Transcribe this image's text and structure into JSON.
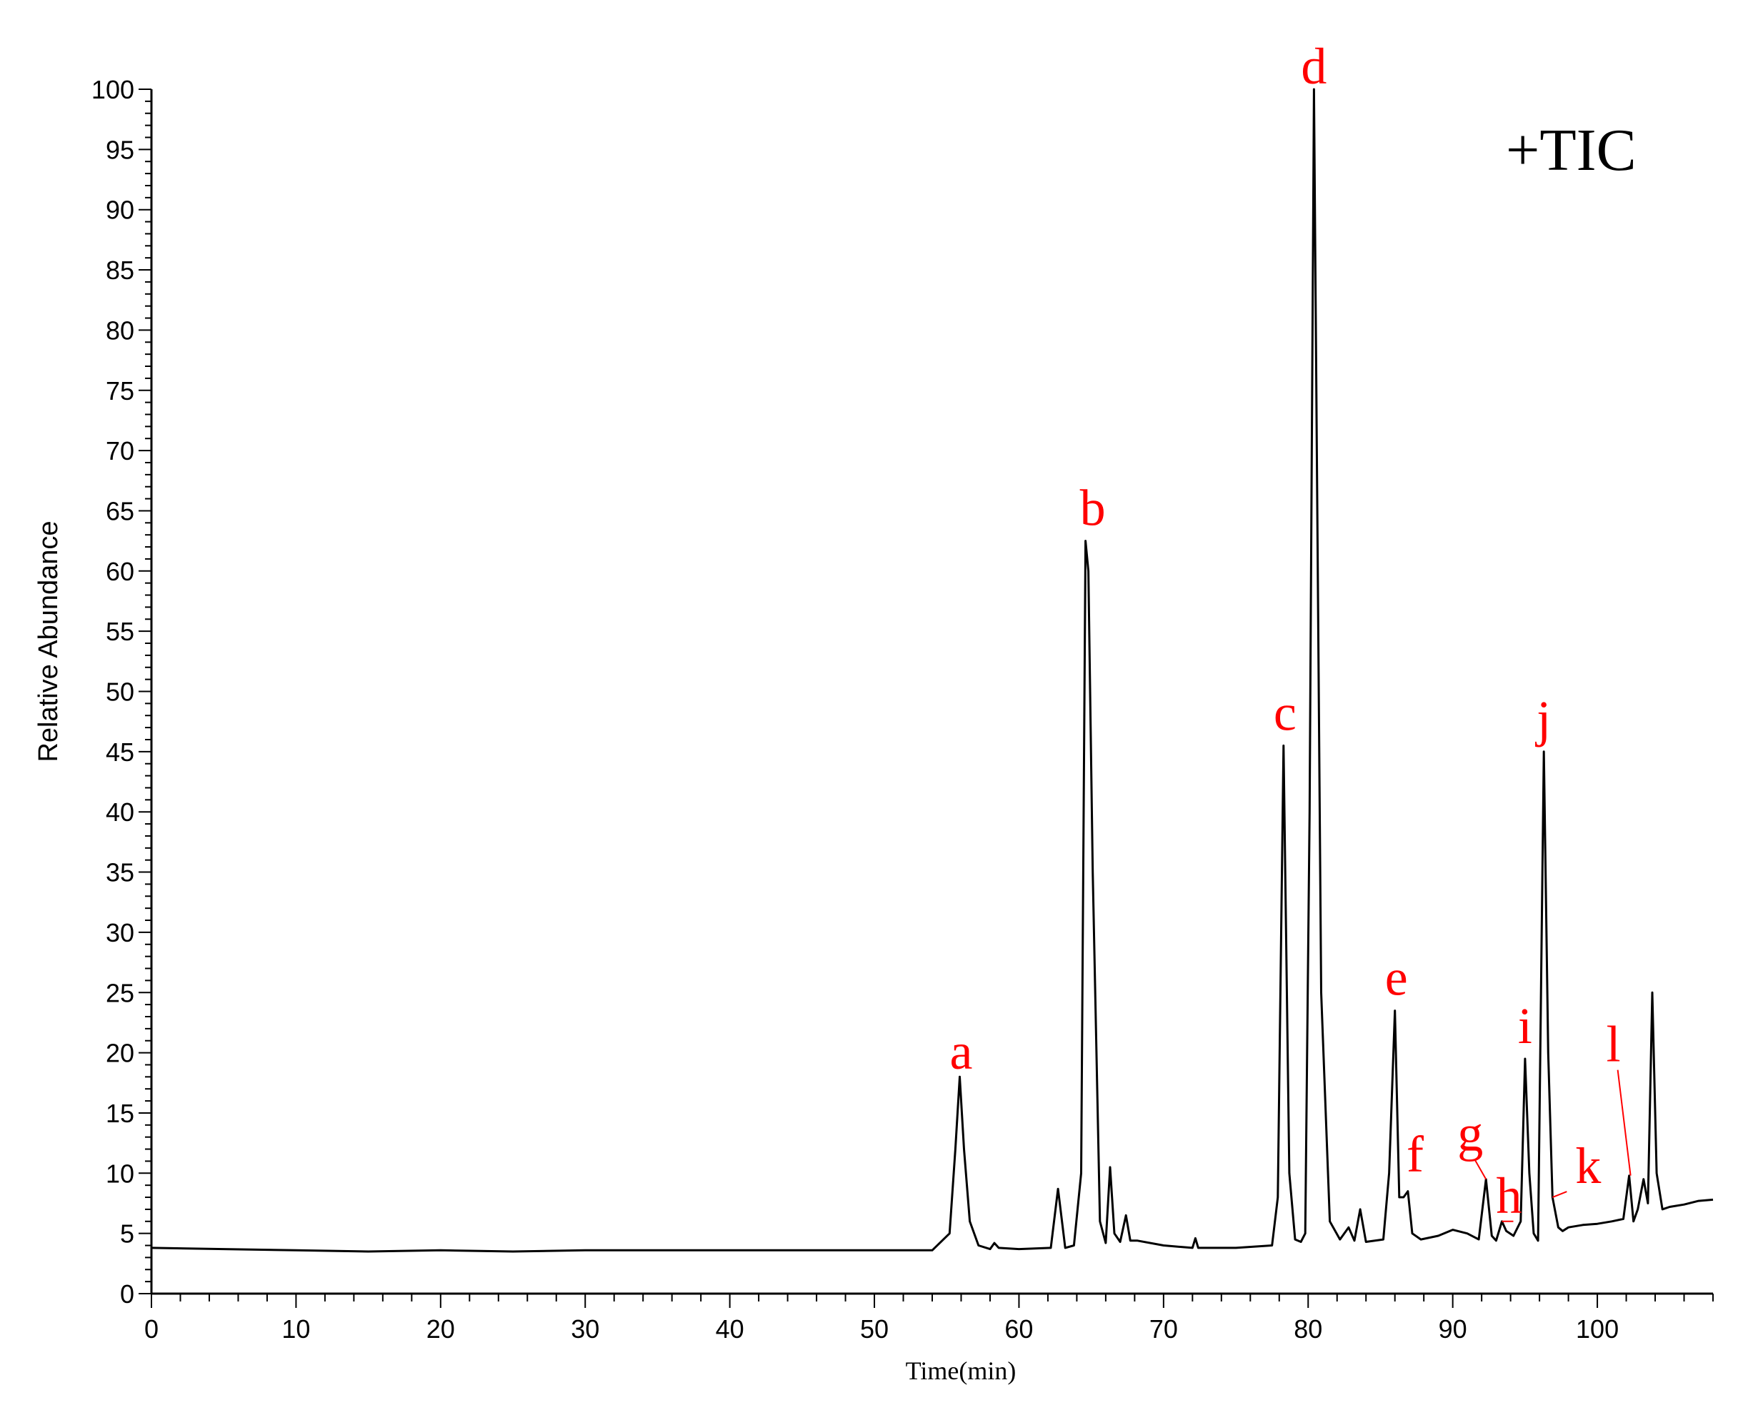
{
  "chart_data": {
    "type": "line",
    "title": "",
    "xlabel": "Time(min)",
    "ylabel": "Relative Abundance",
    "annotation": "+TIC",
    "xlim": [
      0,
      108
    ],
    "ylim": [
      0,
      100
    ],
    "x_ticks": [
      0,
      10,
      20,
      30,
      40,
      50,
      60,
      70,
      80,
      90,
      100
    ],
    "y_ticks": [
      0,
      5,
      10,
      15,
      20,
      25,
      30,
      35,
      40,
      45,
      50,
      55,
      60,
      65,
      70,
      75,
      80,
      85,
      90,
      95,
      100
    ],
    "grid": false,
    "colors": {
      "trace": "#000000",
      "labels": "#ff0000"
    },
    "series": [
      {
        "x": [
          0,
          5,
          10,
          15,
          20,
          25,
          30,
          35,
          40,
          45,
          50,
          54,
          55.2,
          55.6,
          55.9,
          56.2,
          56.6,
          57.2,
          58,
          58.3,
          58.6,
          60,
          62.2,
          62.7,
          63.2,
          63.8,
          64.3,
          64.6,
          64.8,
          65.1,
          65.6,
          66,
          66.3,
          66.6,
          67,
          67.4,
          67.7,
          68.2,
          70,
          72,
          72.2,
          72.4,
          75,
          77.5,
          77.9,
          78.3,
          78.7,
          79.1,
          79.5,
          79.8,
          80.1,
          80.4,
          80.6,
          80.9,
          81.5,
          82.2,
          82.8,
          83.2,
          83.6,
          84,
          85.2,
          85.6,
          86,
          86.3,
          86.6,
          86.9,
          87.2,
          87.8,
          89,
          90,
          91,
          91.8,
          92.3,
          92.7,
          93,
          93.4,
          93.7,
          94.2,
          94.7,
          95,
          95.3,
          95.6,
          95.9,
          96.3,
          96.6,
          96.9,
          97.3,
          97.6,
          98,
          99,
          100,
          101,
          101.8,
          102.2,
          102.5,
          102.8,
          103.2,
          103.5,
          103.8,
          104.1,
          104.5,
          105,
          106,
          107,
          108
        ],
        "y": [
          3.8,
          3.7,
          3.6,
          3.5,
          3.6,
          3.5,
          3.6,
          3.6,
          3.6,
          3.6,
          3.6,
          3.6,
          5,
          12,
          18,
          12,
          6,
          4,
          3.7,
          4.2,
          3.8,
          3.7,
          3.8,
          8.7,
          3.8,
          4,
          10,
          62.5,
          60,
          35,
          6,
          4.2,
          10.5,
          5,
          4.3,
          6.5,
          4.4,
          4.4,
          4.0,
          3.8,
          4.6,
          3.8,
          3.8,
          4.0,
          8,
          45.5,
          10,
          4.5,
          4.3,
          5,
          40,
          100,
          70,
          25,
          6,
          4.5,
          5.5,
          4.4,
          7,
          4.3,
          4.5,
          10,
          23.5,
          8,
          8,
          8.5,
          5,
          4.5,
          4.8,
          5.3,
          5.0,
          4.5,
          9.5,
          4.8,
          4.4,
          6.0,
          5.2,
          4.8,
          6,
          19.5,
          10,
          5,
          4.4,
          45,
          20,
          8,
          5.5,
          5.2,
          5.5,
          5.7,
          5.8,
          6.0,
          6.2,
          9.8,
          6.0,
          7.0,
          9.5,
          7.5,
          25,
          10,
          7.0,
          7.2,
          7.4,
          7.7,
          7.8
        ]
      }
    ],
    "peak_labels": [
      {
        "text": "a",
        "x": 56.0,
        "y": 17.5
      },
      {
        "text": "b",
        "x": 64.7,
        "y": 62.5
      },
      {
        "text": "c",
        "x": 78.4,
        "y": 45.5
      },
      {
        "text": "d",
        "x": 80.4,
        "y": 100
      },
      {
        "text": "e",
        "x": 86.1,
        "y": 23.5
      },
      {
        "text": "f",
        "x": 87.0,
        "y": 8.5
      },
      {
        "text": "g",
        "x": 92.3,
        "y": 9.5
      },
      {
        "text": "h",
        "x": 93.4,
        "y": 6.0
      },
      {
        "text": "i",
        "x": 95.0,
        "y": 19.5
      },
      {
        "text": "j",
        "x": 96.3,
        "y": 45
      },
      {
        "text": "k",
        "x": 96.9,
        "y": 8.0
      },
      {
        "text": "l",
        "x": 102.3,
        "y": 9.8
      }
    ]
  }
}
